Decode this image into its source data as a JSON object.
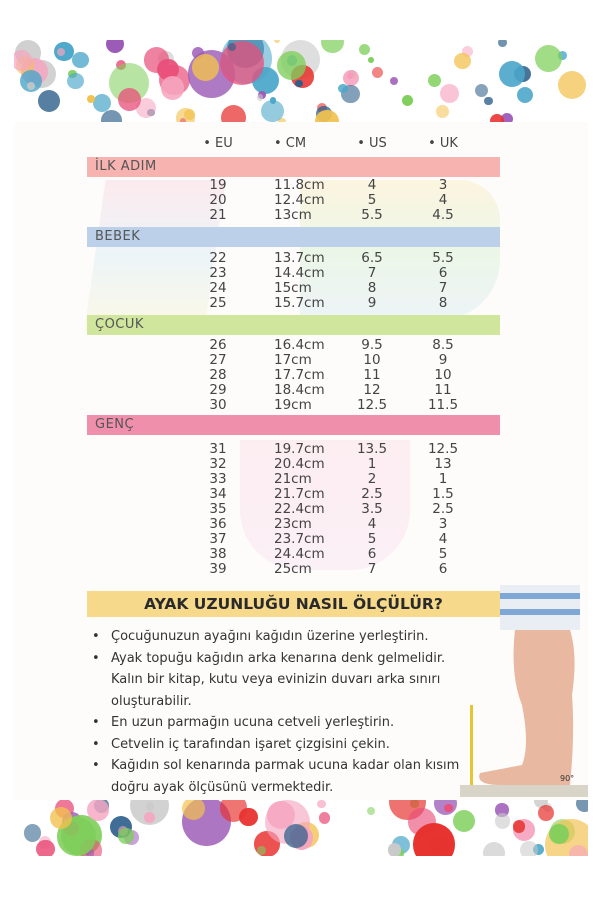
{
  "columns": [
    "EU",
    "CM",
    "US",
    "UK"
  ],
  "groups": [
    {
      "label": "İLK ADIM",
      "color": "#f7b3b0",
      "rows": [
        [
          "19",
          "11.8cm",
          "4",
          "3"
        ],
        [
          "20",
          "12.4cm",
          "5",
          "4"
        ],
        [
          "21",
          "13cm",
          "5.5",
          "4.5"
        ]
      ]
    },
    {
      "label": "BEBEK",
      "color": "#bcd0ea",
      "rows": [
        [
          "22",
          "13.7cm",
          "6.5",
          "5.5"
        ],
        [
          "23",
          "14.4cm",
          "7",
          "6"
        ],
        [
          "24",
          "15cm",
          "8",
          "7"
        ],
        [
          "25",
          "15.7cm",
          "9",
          "8"
        ]
      ]
    },
    {
      "label": "ÇOCUK",
      "color": "#cfe69c",
      "rows": [
        [
          "26",
          "16.4cm",
          "9.5",
          "8.5"
        ],
        [
          "27",
          "17cm",
          "10",
          "9"
        ],
        [
          "28",
          "17.7cm",
          "11",
          "10"
        ],
        [
          "29",
          "18.4cm",
          "12",
          "11"
        ],
        [
          "30",
          "19cm",
          "12.5",
          "11.5"
        ]
      ]
    },
    {
      "label": "GENÇ",
      "color": "#ef8fab",
      "rows": [
        [
          "31",
          "19.7cm",
          "13.5",
          "12.5"
        ],
        [
          "32",
          "20.4cm",
          "1",
          "13"
        ],
        [
          "33",
          "21cm",
          "2",
          "1"
        ],
        [
          "34",
          "21.7cm",
          "2.5",
          "1.5"
        ],
        [
          "35",
          "22.4cm",
          "3.5",
          "2.5"
        ],
        [
          "36",
          "23cm",
          "4",
          "3"
        ],
        [
          "37",
          "23.7cm",
          "5",
          "4"
        ],
        [
          "38",
          "24.4cm",
          "6",
          "5"
        ],
        [
          "39",
          "25cm",
          "7",
          "6"
        ]
      ]
    }
  ],
  "howto": {
    "title": "AYAK UZUNLUĞU NASIL ÖLÇÜLÜR?",
    "steps": [
      "Çocuğunuzun ayağını kağıdın üzerine yerleştirin.",
      "Ayak topuğu kağıdın arka kenarına denk gelmelidir. Kalın bir kitap, kutu veya evinizin duvarı arka sınırı oluşturabilir.",
      "En uzun parmağın ucuna cetveli yerleştirin.",
      "Cetvelin iç tarafından işaret çizgisini çekin.",
      "Kağıdın sol kenarında parmak ucuna kadar olan kısım doğru ayak ölçüsünü vermektedir."
    ],
    "angle_label": "90°"
  },
  "colors": {
    "heading_bar": "#f6d98a",
    "dots": [
      "#e94f7a",
      "#f6a5c0",
      "#7ecf5a",
      "#4aa6c9",
      "#2d5f8a",
      "#f2c14e",
      "#c9c9c9",
      "#e7322f",
      "#9b59b6"
    ]
  }
}
